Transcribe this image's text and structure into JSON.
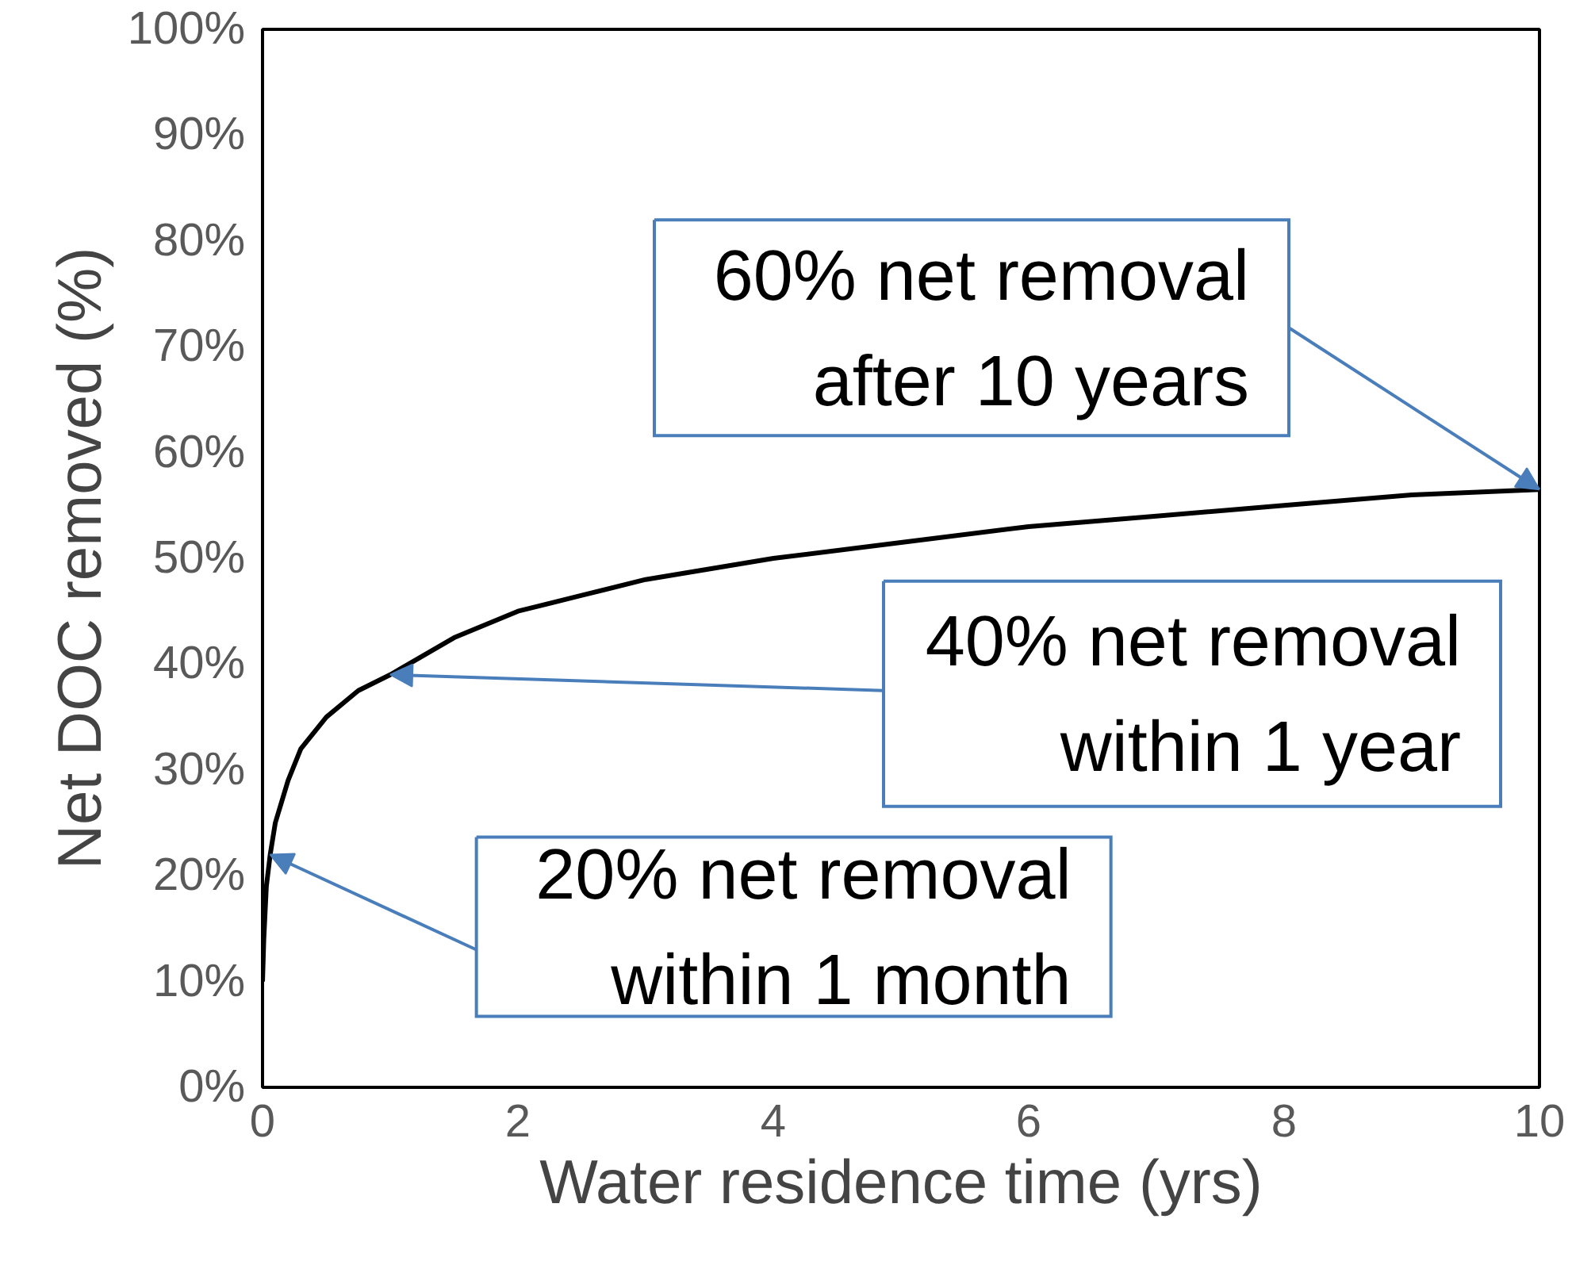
{
  "chart_data": {
    "type": "line",
    "xlabel": "Water residence time (yrs)",
    "ylabel": "Net DOC removed (%)",
    "x": [
      0,
      0.01,
      0.03,
      0.06,
      0.1,
      0.2,
      0.3,
      0.5,
      0.75,
      1,
      1.5,
      2,
      2.5,
      3,
      4,
      5,
      6,
      7,
      8,
      9,
      10
    ],
    "series": [
      {
        "color": "#000000",
        "values": [
          10,
          14,
          19,
          22,
          25,
          29,
          32,
          35,
          37.5,
          39,
          42.5,
          45,
          46.5,
          48,
          50,
          51.5,
          53,
          54,
          55,
          56,
          56.5
        ]
      }
    ],
    "xlim": [
      0,
      10
    ],
    "xticks": [
      0,
      2,
      4,
      6,
      8,
      10
    ],
    "ylim": [
      0,
      100
    ],
    "yticks": [
      {
        "value": 0,
        "label": "0%"
      },
      {
        "value": 10,
        "label": "10%"
      },
      {
        "value": 20,
        "label": "20%"
      },
      {
        "value": 30,
        "label": "30%"
      },
      {
        "value": 40,
        "label": "40%"
      },
      {
        "value": 50,
        "label": "50%"
      },
      {
        "value": 60,
        "label": "60%"
      },
      {
        "value": 70,
        "label": "70%"
      },
      {
        "value": 80,
        "label": "80%"
      },
      {
        "value": 90,
        "label": "90%"
      },
      {
        "value": 100,
        "label": "100%"
      }
    ],
    "grid": false,
    "marker": "none",
    "line_style": "solid",
    "annotations": [
      {
        "text": "60% net removal\nafter 10 years",
        "x": 10,
        "y": 56.5
      },
      {
        "text": "40% net removal\nwithin 1 year",
        "x": 1,
        "y": 39
      },
      {
        "text": "20% net removal\nwithin 1 month",
        "x": 0.06,
        "y": 22
      }
    ]
  }
}
